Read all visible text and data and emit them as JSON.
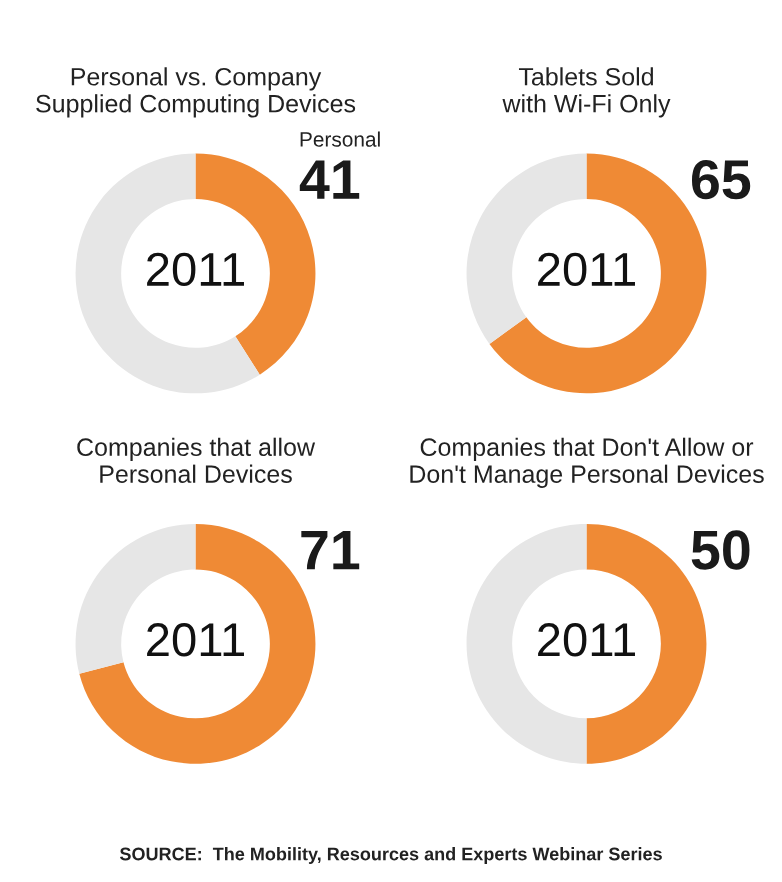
{
  "chart_data": [
    {
      "type": "donut",
      "title": "Personal vs. Company\nSupplied Computing Devices",
      "categories": [
        "Personal",
        null
      ],
      "values": [
        41,
        59
      ],
      "colors": [
        "#ef8a35",
        "#e6e6e6"
      ],
      "value_labels": [
        "41",
        null
      ],
      "annotations": [
        "2011"
      ]
    },
    {
      "type": "donut",
      "title": "Tablets Sold\nwith Wi-Fi Only",
      "categories": [
        null,
        null
      ],
      "values": [
        65,
        35
      ],
      "colors": [
        "#ef8a35",
        "#e6e6e6"
      ],
      "value_labels": [
        "65",
        null
      ],
      "annotations": [
        "2011"
      ]
    },
    {
      "type": "donut",
      "title": "Companies that allow\nPersonal Devices",
      "categories": [
        null,
        null
      ],
      "values": [
        71,
        29
      ],
      "colors": [
        "#ef8a35",
        "#e6e6e6"
      ],
      "value_labels": [
        "71",
        null
      ],
      "annotations": [
        "2011"
      ]
    },
    {
      "type": "donut",
      "title": "Companies that Don't Allow or\nDon't Manage Personal Devices",
      "categories": [
        null,
        null
      ],
      "values": [
        50,
        50
      ],
      "colors": [
        "#ef8a35",
        "#e6e6e6"
      ],
      "value_labels": [
        "50",
        null
      ],
      "annotations": [
        "2011",
        "SOURCE:  The Mobility, Resources and Experts Webinar Series"
      ]
    }
  ]
}
